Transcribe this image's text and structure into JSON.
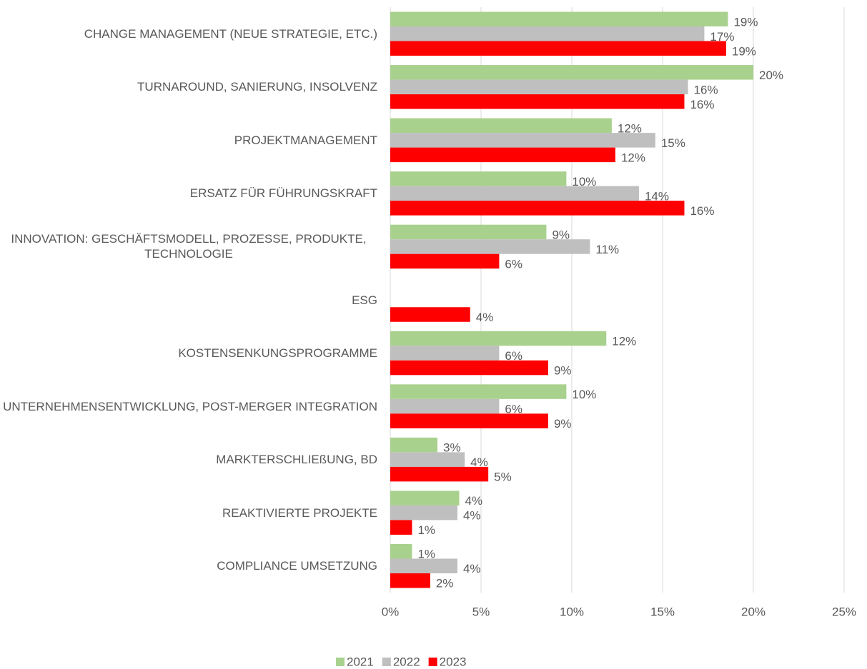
{
  "chart_data": {
    "type": "bar",
    "orientation": "horizontal",
    "categories": [
      "CHANGE MANAGEMENT (NEUE STRATEGIE, ETC.)",
      "TURNAROUND, SANIERUNG, INSOLVENZ",
      "PROJEKTMANAGEMENT",
      "ERSATZ FÜR FÜHRUNGSKRAFT",
      "INNOVATION: GESCHÄFTSMODELL, PROZESSE, PRODUKTE, TECHNOLOGIE",
      "ESG",
      "KOSTENSENKUNGSPROGRAMME",
      "UNTERNEHMENSENTWICKLUNG, POST-MERGER INTEGRATION",
      "MARKTERSCHLIEßUNG, BD",
      "REAKTIVIERTE PROJEKTE",
      "COMPLIANCE UMSETZUNG"
    ],
    "series": [
      {
        "name": "2021",
        "color": "#a9d18e",
        "values": [
          18.6,
          20.0,
          12.2,
          9.7,
          8.6,
          null,
          11.9,
          9.7,
          2.6,
          3.8,
          1.2
        ],
        "value_labels": [
          "19%",
          "20%",
          "12%",
          "10%",
          "9%",
          null,
          "12%",
          "10%",
          "3%",
          "4%",
          "1%"
        ]
      },
      {
        "name": "2022",
        "color": "#bfbfbf",
        "values": [
          17.3,
          16.4,
          14.6,
          13.7,
          11.0,
          null,
          6.0,
          6.0,
          4.1,
          3.7,
          3.7
        ],
        "value_labels": [
          "17%",
          "16%",
          "15%",
          "14%",
          "11%",
          null,
          "6%",
          "6%",
          "4%",
          "4%",
          "4%"
        ]
      },
      {
        "name": "2023",
        "color": "#ff0000",
        "values": [
          18.5,
          16.2,
          12.4,
          16.2,
          6.0,
          4.4,
          8.7,
          8.7,
          5.4,
          1.2,
          2.2
        ],
        "value_labels": [
          "19%",
          "16%",
          "12%",
          "16%",
          "6%",
          "4%",
          "9%",
          "9%",
          "5%",
          "1%",
          "2%"
        ]
      }
    ],
    "xlim": [
      0,
      25
    ],
    "xticks": [
      {
        "value": 0,
        "label": "0%"
      },
      {
        "value": 5,
        "label": "5%"
      },
      {
        "value": 10,
        "label": "10%"
      },
      {
        "value": 15,
        "label": "15%"
      },
      {
        "value": 20,
        "label": "20%"
      },
      {
        "value": 25,
        "label": "25%"
      }
    ],
    "grid": true,
    "legend": "bottom"
  }
}
